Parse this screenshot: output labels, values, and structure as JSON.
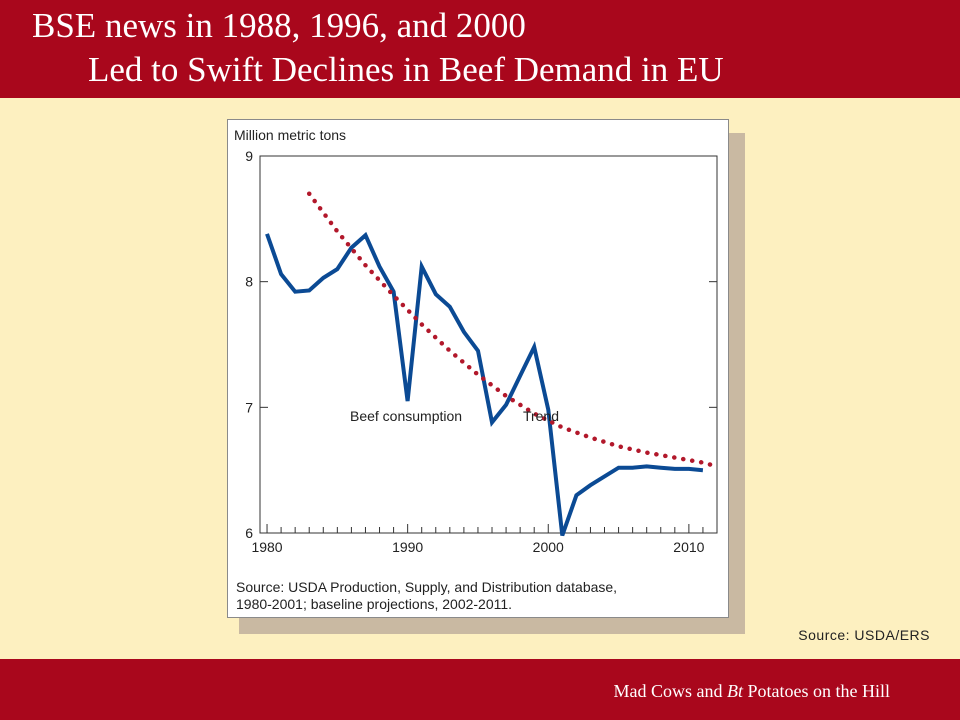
{
  "slide": {
    "title_line1": "BSE news in 1988, 1996, and 2000",
    "title_line2": "Led to Swift Declines in Beef Demand in EU",
    "footer_prefix": "Mad Cows and ",
    "footer_italic": "Bt",
    "footer_suffix": " Potatoes on the Hill",
    "source_note": "Source:  USDA/ERS"
  },
  "chart_data": {
    "type": "line",
    "ylabel": "Million metric tons",
    "ylim": [
      6,
      9
    ],
    "xlim": [
      1979.5,
      2012
    ],
    "x_ticks": [
      1980,
      1990,
      2000,
      2010
    ],
    "y_ticks": [
      6,
      7,
      8,
      9
    ],
    "grid": false,
    "source_line1": "Source: USDA Production, Supply, and Distribution database,",
    "source_line2": "1980-2001; baseline projections, 2002-2011.",
    "series": [
      {
        "name": "Beef consumption",
        "color": "#0b4a94",
        "style": "solid",
        "x": [
          1980,
          1981,
          1982,
          1983,
          1984,
          1985,
          1986,
          1987,
          1988,
          1989,
          1990,
          1991,
          1992,
          1993,
          1994,
          1995,
          1996,
          1997,
          1998,
          1999,
          2000,
          2001,
          2002,
          2003,
          2004,
          2005,
          2006,
          2007,
          2008,
          2009,
          2010,
          2011
        ],
        "values": [
          8.38,
          8.06,
          7.92,
          7.93,
          8.03,
          8.1,
          8.27,
          8.37,
          8.12,
          7.92,
          7.05,
          8.12,
          7.9,
          7.8,
          7.6,
          7.45,
          6.88,
          7.02,
          7.25,
          7.48,
          6.98,
          5.98,
          6.3,
          6.38,
          6.45,
          6.52,
          6.52,
          6.53,
          6.52,
          6.51,
          6.51,
          6.5
        ]
      },
      {
        "name": "Trend",
        "color": "#b2182b",
        "style": "dotted",
        "x": [
          1983,
          1985,
          1987,
          1989,
          1991,
          1993,
          1995,
          1997,
          1999,
          2001,
          2003,
          2005,
          2007,
          2009,
          2011,
          2012
        ],
        "values": [
          8.7,
          8.4,
          8.13,
          7.89,
          7.66,
          7.45,
          7.26,
          7.09,
          6.95,
          6.84,
          6.76,
          6.69,
          6.64,
          6.6,
          6.56,
          6.53
        ]
      }
    ],
    "annotations": [
      {
        "text": "Beef consumption",
        "x": 1985.9,
        "y": 6.93
      },
      {
        "text": "Trend",
        "x": 1998.2,
        "y": 6.93
      }
    ]
  }
}
